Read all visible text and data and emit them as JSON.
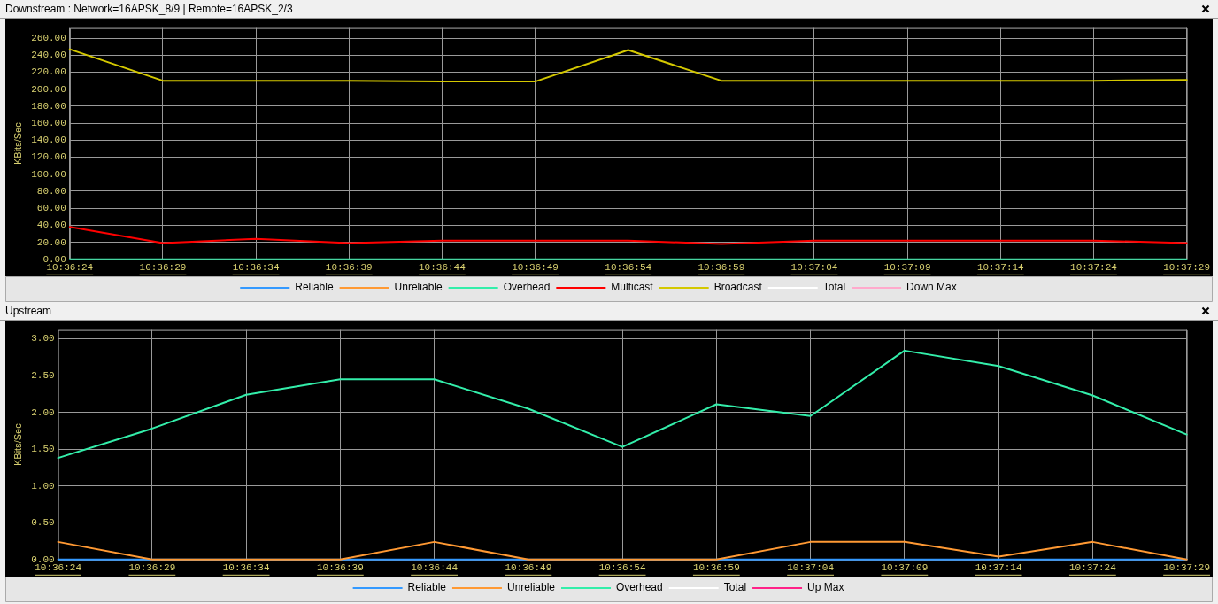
{
  "chart_data": [
    {
      "type": "line",
      "title": "Downstream : Network=16APSK_8/9 | Remote=16APSK_2/3",
      "ylabel": "KBits/Sec",
      "grid": true,
      "legend": "bottom",
      "marker": "none",
      "line_style": "solid",
      "categories": [
        "10:36:24",
        "10:36:29",
        "10:36:34",
        "10:36:39",
        "10:36:44",
        "10:36:49",
        "10:36:54",
        "10:36:59",
        "10:37:04",
        "10:37:09",
        "10:37:14",
        "10:37:24",
        "10:37:29"
      ],
      "ylim": [
        0,
        272
      ],
      "yticks": [
        {
          "value": 0,
          "label": "0.00"
        },
        {
          "value": 20,
          "label": "20.00"
        },
        {
          "value": 40,
          "label": "40.00"
        },
        {
          "value": 60,
          "label": "60.00"
        },
        {
          "value": 80,
          "label": "80.00"
        },
        {
          "value": 100,
          "label": "100.00"
        },
        {
          "value": 120,
          "label": "120.00"
        },
        {
          "value": 140,
          "label": "140.00"
        },
        {
          "value": 160,
          "label": "160.00"
        },
        {
          "value": 180,
          "label": "180.00"
        },
        {
          "value": 200,
          "label": "200.00"
        },
        {
          "value": 220,
          "label": "220.00"
        },
        {
          "value": 240,
          "label": "240.00"
        },
        {
          "value": 260,
          "label": "260.00"
        }
      ],
      "series": [
        {
          "name": "Reliable",
          "color": "#3399ff",
          "values": [
            null,
            null,
            null,
            null,
            null,
            null,
            null,
            null,
            null,
            null,
            null,
            null,
            null
          ]
        },
        {
          "name": "Unreliable",
          "color": "#ff9933",
          "values": [
            null,
            null,
            null,
            null,
            null,
            null,
            null,
            null,
            null,
            null,
            null,
            null,
            null
          ]
        },
        {
          "name": "Overhead",
          "color": "#33eeaa",
          "values": [
            0,
            0,
            0,
            0,
            0,
            0,
            0,
            0,
            0,
            0,
            0,
            0,
            0
          ]
        },
        {
          "name": "Multicast",
          "color": "#ff0000",
          "values": [
            38,
            19,
            24,
            19,
            22,
            22,
            22,
            18,
            22,
            22,
            22,
            22,
            19
          ]
        },
        {
          "name": "Broadcast",
          "color": "#d4c800",
          "values": [
            247,
            210,
            210,
            210,
            209,
            209,
            246,
            210,
            210,
            210,
            210,
            210,
            211
          ]
        },
        {
          "name": "Total",
          "color": "#ffffff",
          "values": [
            null,
            null,
            null,
            null,
            null,
            null,
            null,
            null,
            null,
            null,
            null,
            null,
            null
          ]
        },
        {
          "name": "Down Max",
          "color": "#ffaacc",
          "values": [
            null,
            null,
            null,
            null,
            null,
            null,
            null,
            null,
            null,
            null,
            null,
            null,
            null
          ]
        }
      ]
    },
    {
      "type": "line",
      "title": "Upstream",
      "ylabel": "KBits/Sec",
      "grid": true,
      "legend": "bottom",
      "marker": "none",
      "line_style": "solid",
      "categories": [
        "10:36:24",
        "10:36:29",
        "10:36:34",
        "10:36:39",
        "10:36:44",
        "10:36:49",
        "10:36:54",
        "10:36:59",
        "10:37:04",
        "10:37:09",
        "10:37:14",
        "10:37:24",
        "10:37:29"
      ],
      "ylim": [
        0,
        3.12
      ],
      "yticks": [
        {
          "value": 0,
          "label": "0.00"
        },
        {
          "value": 0.5,
          "label": "0.50"
        },
        {
          "value": 1,
          "label": "1.00"
        },
        {
          "value": 1.5,
          "label": "1.50"
        },
        {
          "value": 2,
          "label": "2.00"
        },
        {
          "value": 2.5,
          "label": "2.50"
        },
        {
          "value": 3,
          "label": "3.00"
        }
      ],
      "series": [
        {
          "name": "Reliable",
          "color": "#3399ff",
          "values": [
            0,
            0,
            0,
            0,
            0,
            0,
            0,
            0,
            0,
            0,
            0,
            0,
            0
          ]
        },
        {
          "name": "Unreliable",
          "color": "#ff9933",
          "values": [
            0.24,
            0,
            0,
            0,
            0.24,
            0,
            0,
            0,
            0.24,
            0.24,
            0.04,
            0.24,
            0
          ]
        },
        {
          "name": "Overhead",
          "color": "#33eeaa",
          "values": [
            1.38,
            1.78,
            2.24,
            2.45,
            2.45,
            2.05,
            1.53,
            2.11,
            1.95,
            2.84,
            2.63,
            2.23,
            1.7
          ]
        },
        {
          "name": "Total",
          "color": "#ffffff",
          "values": [
            null,
            null,
            null,
            null,
            null,
            null,
            null,
            null,
            null,
            null,
            null,
            null,
            null
          ]
        },
        {
          "name": "Up Max",
          "color": "#ff2288",
          "values": [
            null,
            null,
            null,
            null,
            null,
            null,
            null,
            null,
            null,
            null,
            null,
            null,
            null
          ]
        }
      ]
    }
  ]
}
